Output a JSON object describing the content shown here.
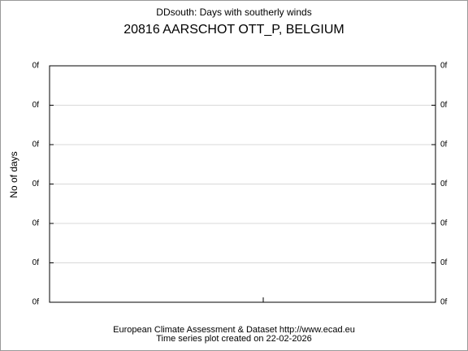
{
  "chart_data": {
    "type": "line",
    "title": "DDsouth: Days with southerly winds",
    "subtitle": "20816 AARSCHOT OTT_P, BELGIUM",
    "y_label": "No of days",
    "footer": [
      "European Climate Assessment & Dataset  http://www.ecad.eu",
      "Time series plot created on 22-02-2026"
    ],
    "ylim": [
      0,
      6
    ],
    "yticks": [
      {
        "value": 0,
        "label": "0f"
      },
      {
        "value": 1,
        "label": "0f"
      },
      {
        "value": 2,
        "label": "0f"
      },
      {
        "value": 3,
        "label": "0f"
      },
      {
        "value": 4,
        "label": "0f"
      },
      {
        "value": 5,
        "label": "0f"
      },
      {
        "value": 6,
        "label": "0f"
      }
    ],
    "grid": true
  }
}
